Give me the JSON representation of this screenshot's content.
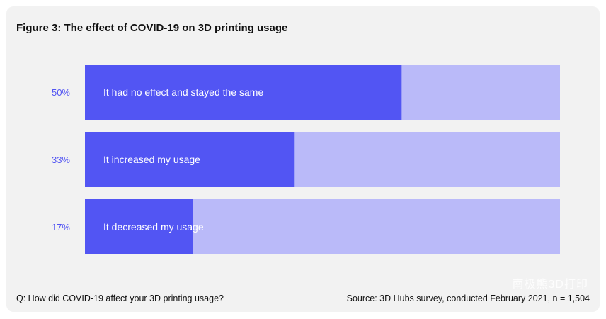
{
  "title": "Figure 3: The effect of COVID-19 on 3D printing usage",
  "footer": {
    "question": "Q: How did COVID-19 affect your 3D printing usage?",
    "source": "Source: 3D Hubs survey, conducted February 2021, n = 1,504"
  },
  "watermark": "南极熊3D打印",
  "colors": {
    "bar": "#5255f3",
    "track": "#babaf9",
    "percent_text": "#5255f3",
    "label_text": "#ffffff"
  },
  "chart_data": {
    "type": "bar",
    "orientation": "horizontal",
    "title": "Figure 3: The effect of COVID-19 on 3D printing usage",
    "categories": [
      "It had no effect and stayed the same",
      "It increased my usage",
      "It decreased my usage"
    ],
    "values": [
      50,
      33,
      17
    ],
    "value_labels": [
      "50%",
      "33%",
      "17%"
    ],
    "xlim": [
      0,
      75
    ],
    "unit": "%",
    "grid": false,
    "legend": "none"
  }
}
